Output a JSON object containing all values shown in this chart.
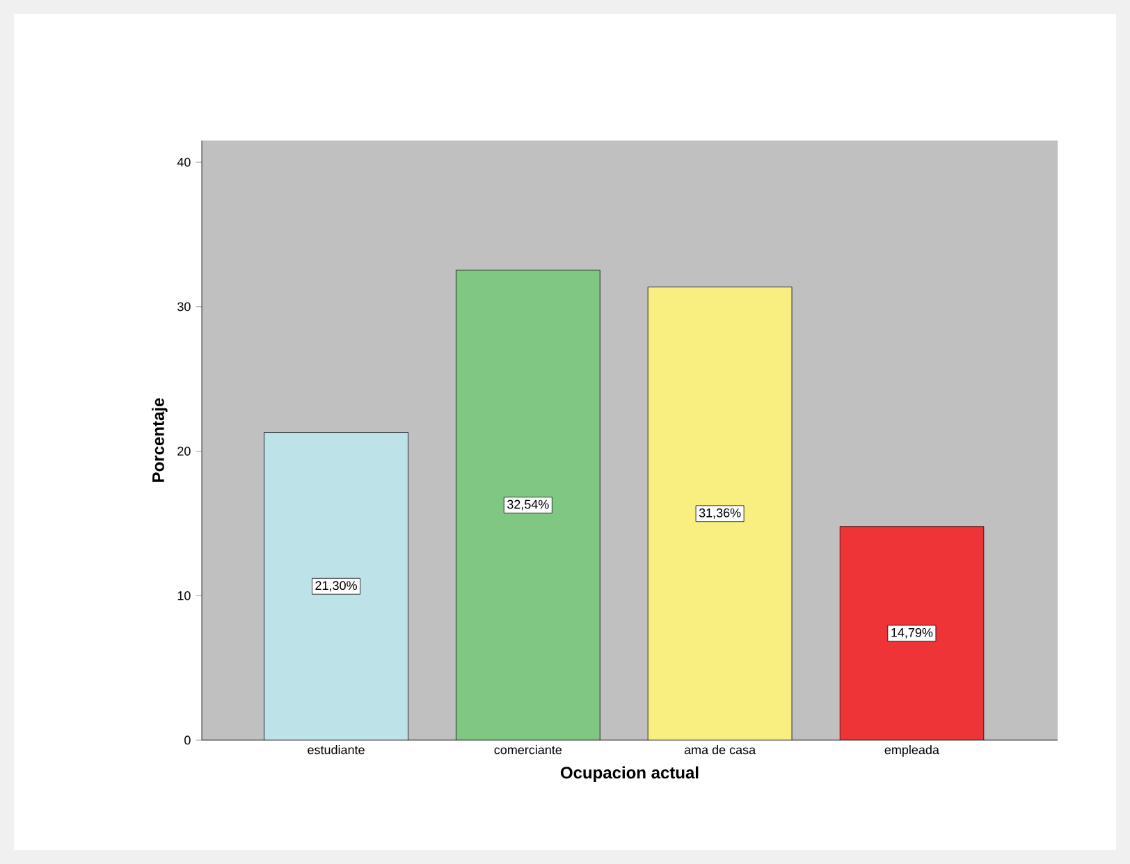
{
  "chart_data": {
    "type": "bar",
    "xlabel": "Ocupacion actual",
    "ylabel": "Porcentaje",
    "categories": [
      "estudiante",
      "comerciante",
      "ama de casa",
      "empleada"
    ],
    "values": [
      21.3,
      32.54,
      31.36,
      14.79
    ],
    "colors": [
      "#bde3e8",
      "#80c882",
      "#f8ef80",
      "#ef3437"
    ],
    "value_labels": [
      "21,30%",
      "32,54%",
      "31,36%",
      "14,79%"
    ],
    "ylim": [
      0,
      41.5
    ],
    "yticks": [
      0,
      10,
      20,
      30,
      40
    ],
    "grid": false
  }
}
